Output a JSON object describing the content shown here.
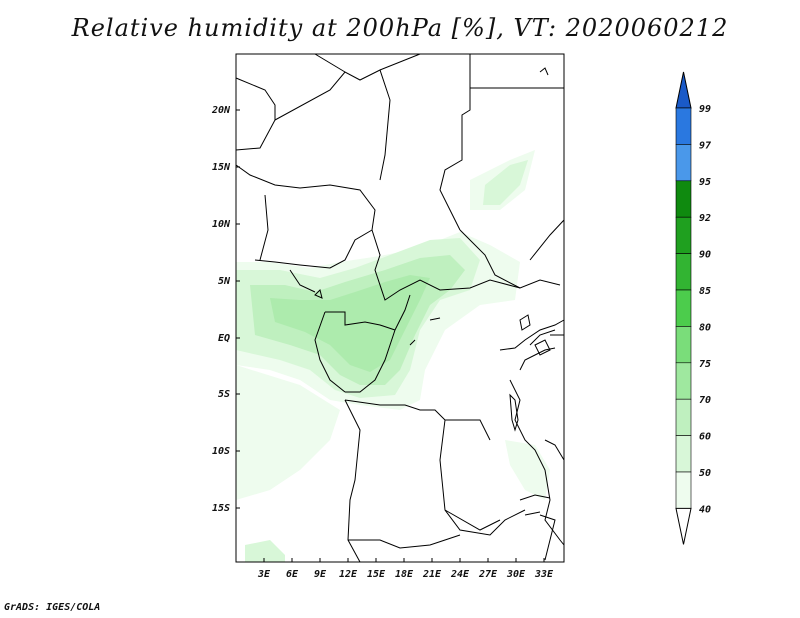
{
  "title": "Relative humidity at 200hPa [%], VT: 2020060212",
  "credit": "GrADS: IGES/COLA",
  "map": {
    "variable": "Relative humidity",
    "level": "200hPa",
    "units": "%",
    "valid_time": "2020060212",
    "lat_labels": [
      "20N",
      "15N",
      "10N",
      "5N",
      "EQ",
      "5S",
      "10S",
      "15S"
    ],
    "lon_labels": [
      "3E",
      "6E",
      "9E",
      "12E",
      "15E",
      "18E",
      "21E",
      "24E",
      "27E",
      "30E",
      "33E"
    ]
  },
  "colorbar": {
    "labels": [
      "99",
      "97",
      "95",
      "92",
      "90",
      "85",
      "80",
      "75",
      "70",
      "60",
      "50",
      "40"
    ],
    "colors": [
      "#1e5fd0",
      "#2a78e0",
      "#4a98ea",
      "#0f8a0f",
      "#1fa01f",
      "#32b432",
      "#4ccc4c",
      "#7add7a",
      "#9fe89f",
      "#bff0bf",
      "#d8f7d8",
      "#eefcee",
      "#ffffff"
    ],
    "top_arrow_color": "#1a5ac8",
    "bottom_arrow_color": "#ffffff"
  }
}
